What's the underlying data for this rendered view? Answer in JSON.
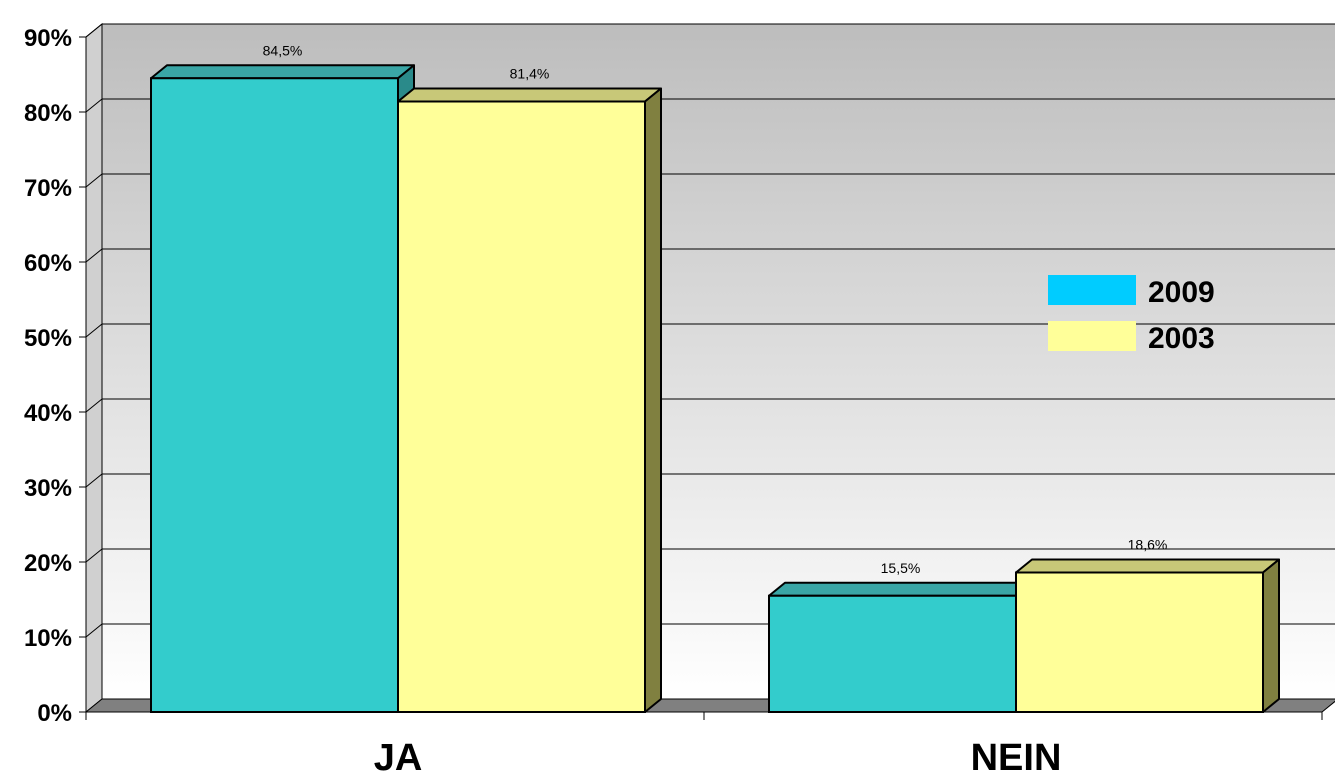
{
  "chart_data": {
    "type": "bar",
    "categories": [
      "JA",
      "NEIN"
    ],
    "series": [
      {
        "name": "2009",
        "values": [
          84.5,
          15.5
        ],
        "data_labels": [
          "84,5%",
          "15,5%"
        ],
        "color": "#33CCCC",
        "side_color": "#2A8A8A",
        "top_color": "#3AA6A6",
        "legend_color": "#00CCFF"
      },
      {
        "name": "2003",
        "values": [
          81.4,
          18.6
        ],
        "data_labels": [
          "81,4%",
          "18,6%"
        ],
        "color": "#FFFF99",
        "side_color": "#808040",
        "top_color": "#C8C878",
        "legend_color": "#FFFF99"
      }
    ],
    "y_ticks": [
      {
        "value": 0,
        "label": "0%"
      },
      {
        "value": 10,
        "label": "10%"
      },
      {
        "value": 20,
        "label": "20%"
      },
      {
        "value": 30,
        "label": "30%"
      },
      {
        "value": 40,
        "label": "40%"
      },
      {
        "value": 50,
        "label": "50%"
      },
      {
        "value": 60,
        "label": "60%"
      },
      {
        "value": 70,
        "label": "70%"
      },
      {
        "value": 80,
        "label": "80%"
      },
      {
        "value": 90,
        "label": "90%"
      }
    ],
    "ylim": [
      0,
      90
    ],
    "title": "",
    "xlabel": "",
    "ylabel": "",
    "grid": true,
    "legend_position": "right",
    "wall_gradient": [
      "#BDBDBD",
      "#FFFFFF"
    ],
    "floor_color": "#808080"
  }
}
